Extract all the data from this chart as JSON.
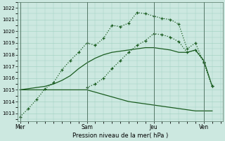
{
  "xlabel": "Pression niveau de la mer( hPa )",
  "ylim": [
    1012.3,
    1022.5
  ],
  "yticks": [
    1013,
    1014,
    1015,
    1016,
    1017,
    1018,
    1019,
    1020,
    1021,
    1022
  ],
  "xtick_labels": [
    "Mer",
    "Sam",
    "Jeu",
    "Ven"
  ],
  "xtick_positions": [
    0,
    8,
    16,
    22
  ],
  "vline_positions": [
    0,
    8,
    16,
    22
  ],
  "xlim": [
    -0.3,
    24.3
  ],
  "background_color": "#cce8e0",
  "grid_color": "#9ecfbf",
  "line_color1": "#1a5c20",
  "line_color2": "#1a5c20",
  "line_color3": "#1a5c20",
  "line_color4": "#1a5c20",
  "line1_x": [
    0,
    1,
    2,
    3,
    4,
    5,
    6,
    7,
    8,
    9,
    10,
    11,
    12,
    13,
    14,
    15,
    16,
    17,
    18,
    19,
    20,
    21,
    22,
    23
  ],
  "line1_y": [
    1012.7,
    1013.4,
    1014.2,
    1015.1,
    1015.6,
    1016.7,
    1017.5,
    1018.2,
    1019.0,
    1018.8,
    1019.4,
    1020.5,
    1020.4,
    1020.7,
    1021.6,
    1021.5,
    1021.3,
    1021.1,
    1021.0,
    1020.6,
    1018.5,
    1019.0,
    1017.3,
    1015.3
  ],
  "line2_x": [
    8,
    9,
    10,
    11,
    12,
    13,
    14,
    15,
    16,
    17,
    18,
    19,
    20,
    21,
    22,
    23
  ],
  "line2_y": [
    1015.2,
    1015.5,
    1016.0,
    1016.8,
    1017.5,
    1018.2,
    1018.8,
    1019.2,
    1019.8,
    1019.7,
    1019.5,
    1019.1,
    1018.2,
    1018.4,
    1017.4,
    1015.3
  ],
  "line3_x": [
    0,
    1,
    2,
    3,
    4,
    5,
    6,
    7,
    8,
    9,
    10,
    11,
    12,
    13,
    14,
    15,
    16,
    17,
    18,
    19,
    20,
    21,
    22,
    23
  ],
  "line3_y": [
    1015.0,
    1015.0,
    1015.0,
    1015.0,
    1015.0,
    1015.0,
    1015.0,
    1015.0,
    1015.0,
    1014.8,
    1014.6,
    1014.4,
    1014.2,
    1014.0,
    1013.9,
    1013.8,
    1013.7,
    1013.6,
    1013.5,
    1013.4,
    1013.3,
    1013.2,
    1013.2,
    1013.2
  ],
  "line4_x": [
    0,
    1,
    2,
    3,
    4,
    5,
    6,
    7,
    8,
    9,
    10,
    11,
    12,
    13,
    14,
    15,
    16,
    17,
    18,
    19,
    20,
    21,
    22,
    23
  ],
  "line4_y": [
    1015.0,
    1015.1,
    1015.2,
    1015.3,
    1015.5,
    1015.8,
    1016.2,
    1016.8,
    1017.3,
    1017.7,
    1018.0,
    1018.2,
    1018.3,
    1018.4,
    1018.5,
    1018.6,
    1018.6,
    1018.5,
    1018.4,
    1018.2,
    1018.2,
    1018.4,
    1017.5,
    1015.3
  ]
}
